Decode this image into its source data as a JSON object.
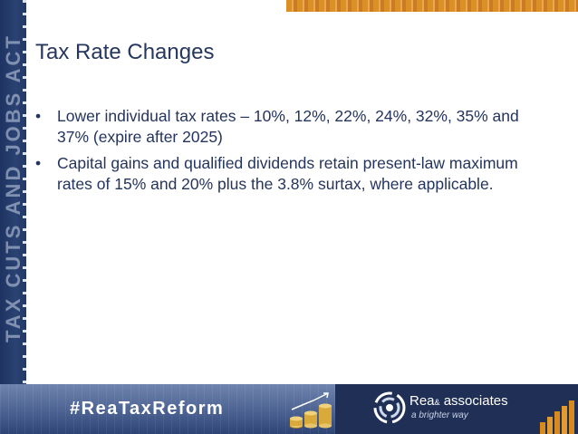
{
  "slide": {
    "title": "Tax Rate Changes",
    "side_banner_text": "TAX CUTS AND JOBS ACT",
    "bullets": [
      "Lower individual tax rates – 10%, 12%, 22%, 24%, 32%, 35% and 37%  (expire after 2025)",
      "Capital gains and qualified dividends retain present-law maximum rates of 15% and 20% plus the 3.8% surtax, where applicable."
    ],
    "bullet_symbol": "•"
  },
  "footer": {
    "hashtag": "#ReaTaxReform",
    "logo_name": "Rea",
    "logo_amp": "&",
    "logo_suffix": "associates",
    "tagline": "a brighter way"
  },
  "colors": {
    "title": "#26375f",
    "body_text": "#24345c",
    "navy": "#1f2f55",
    "accent_orange": "#d98a1c"
  }
}
